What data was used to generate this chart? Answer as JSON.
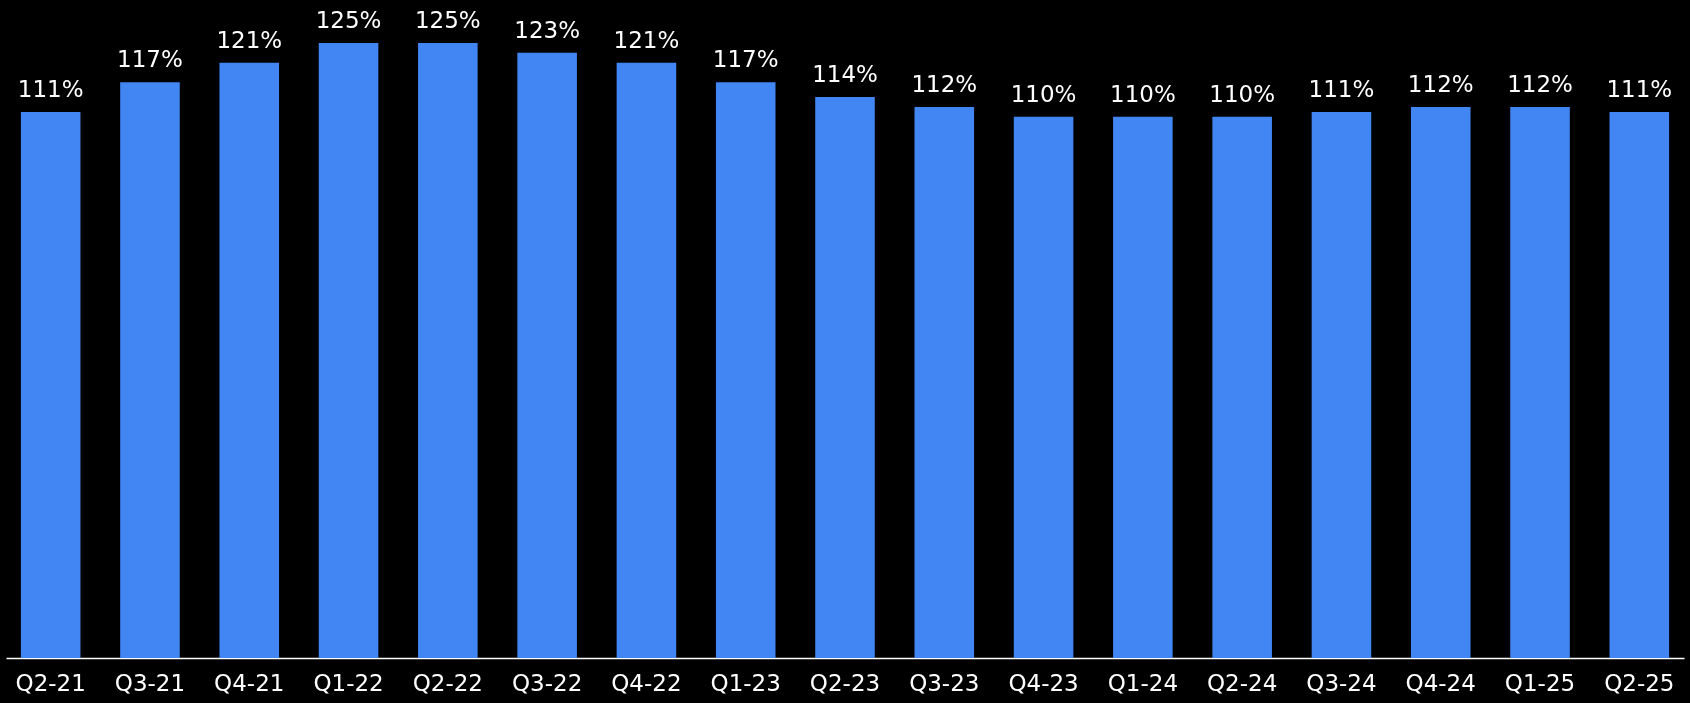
{
  "chart_data": {
    "type": "bar",
    "categories": [
      "Q2-21",
      "Q3-21",
      "Q4-21",
      "Q1-22",
      "Q2-22",
      "Q3-22",
      "Q4-22",
      "Q1-23",
      "Q2-23",
      "Q3-23",
      "Q4-23",
      "Q1-24",
      "Q2-24",
      "Q3-24",
      "Q4-24",
      "Q1-25",
      "Q2-25"
    ],
    "values": [
      111,
      117,
      121,
      125,
      125,
      123,
      121,
      117,
      114,
      112,
      110,
      110,
      110,
      111,
      112,
      112,
      111
    ],
    "value_labels": [
      "111%",
      "117%",
      "121%",
      "125%",
      "125%",
      "123%",
      "121%",
      "117%",
      "114%",
      "112%",
      "110%",
      "110%",
      "110%",
      "111%",
      "112%",
      "112%",
      "111%"
    ],
    "color": "#4286f4",
    "tick_labels": "x"
  }
}
